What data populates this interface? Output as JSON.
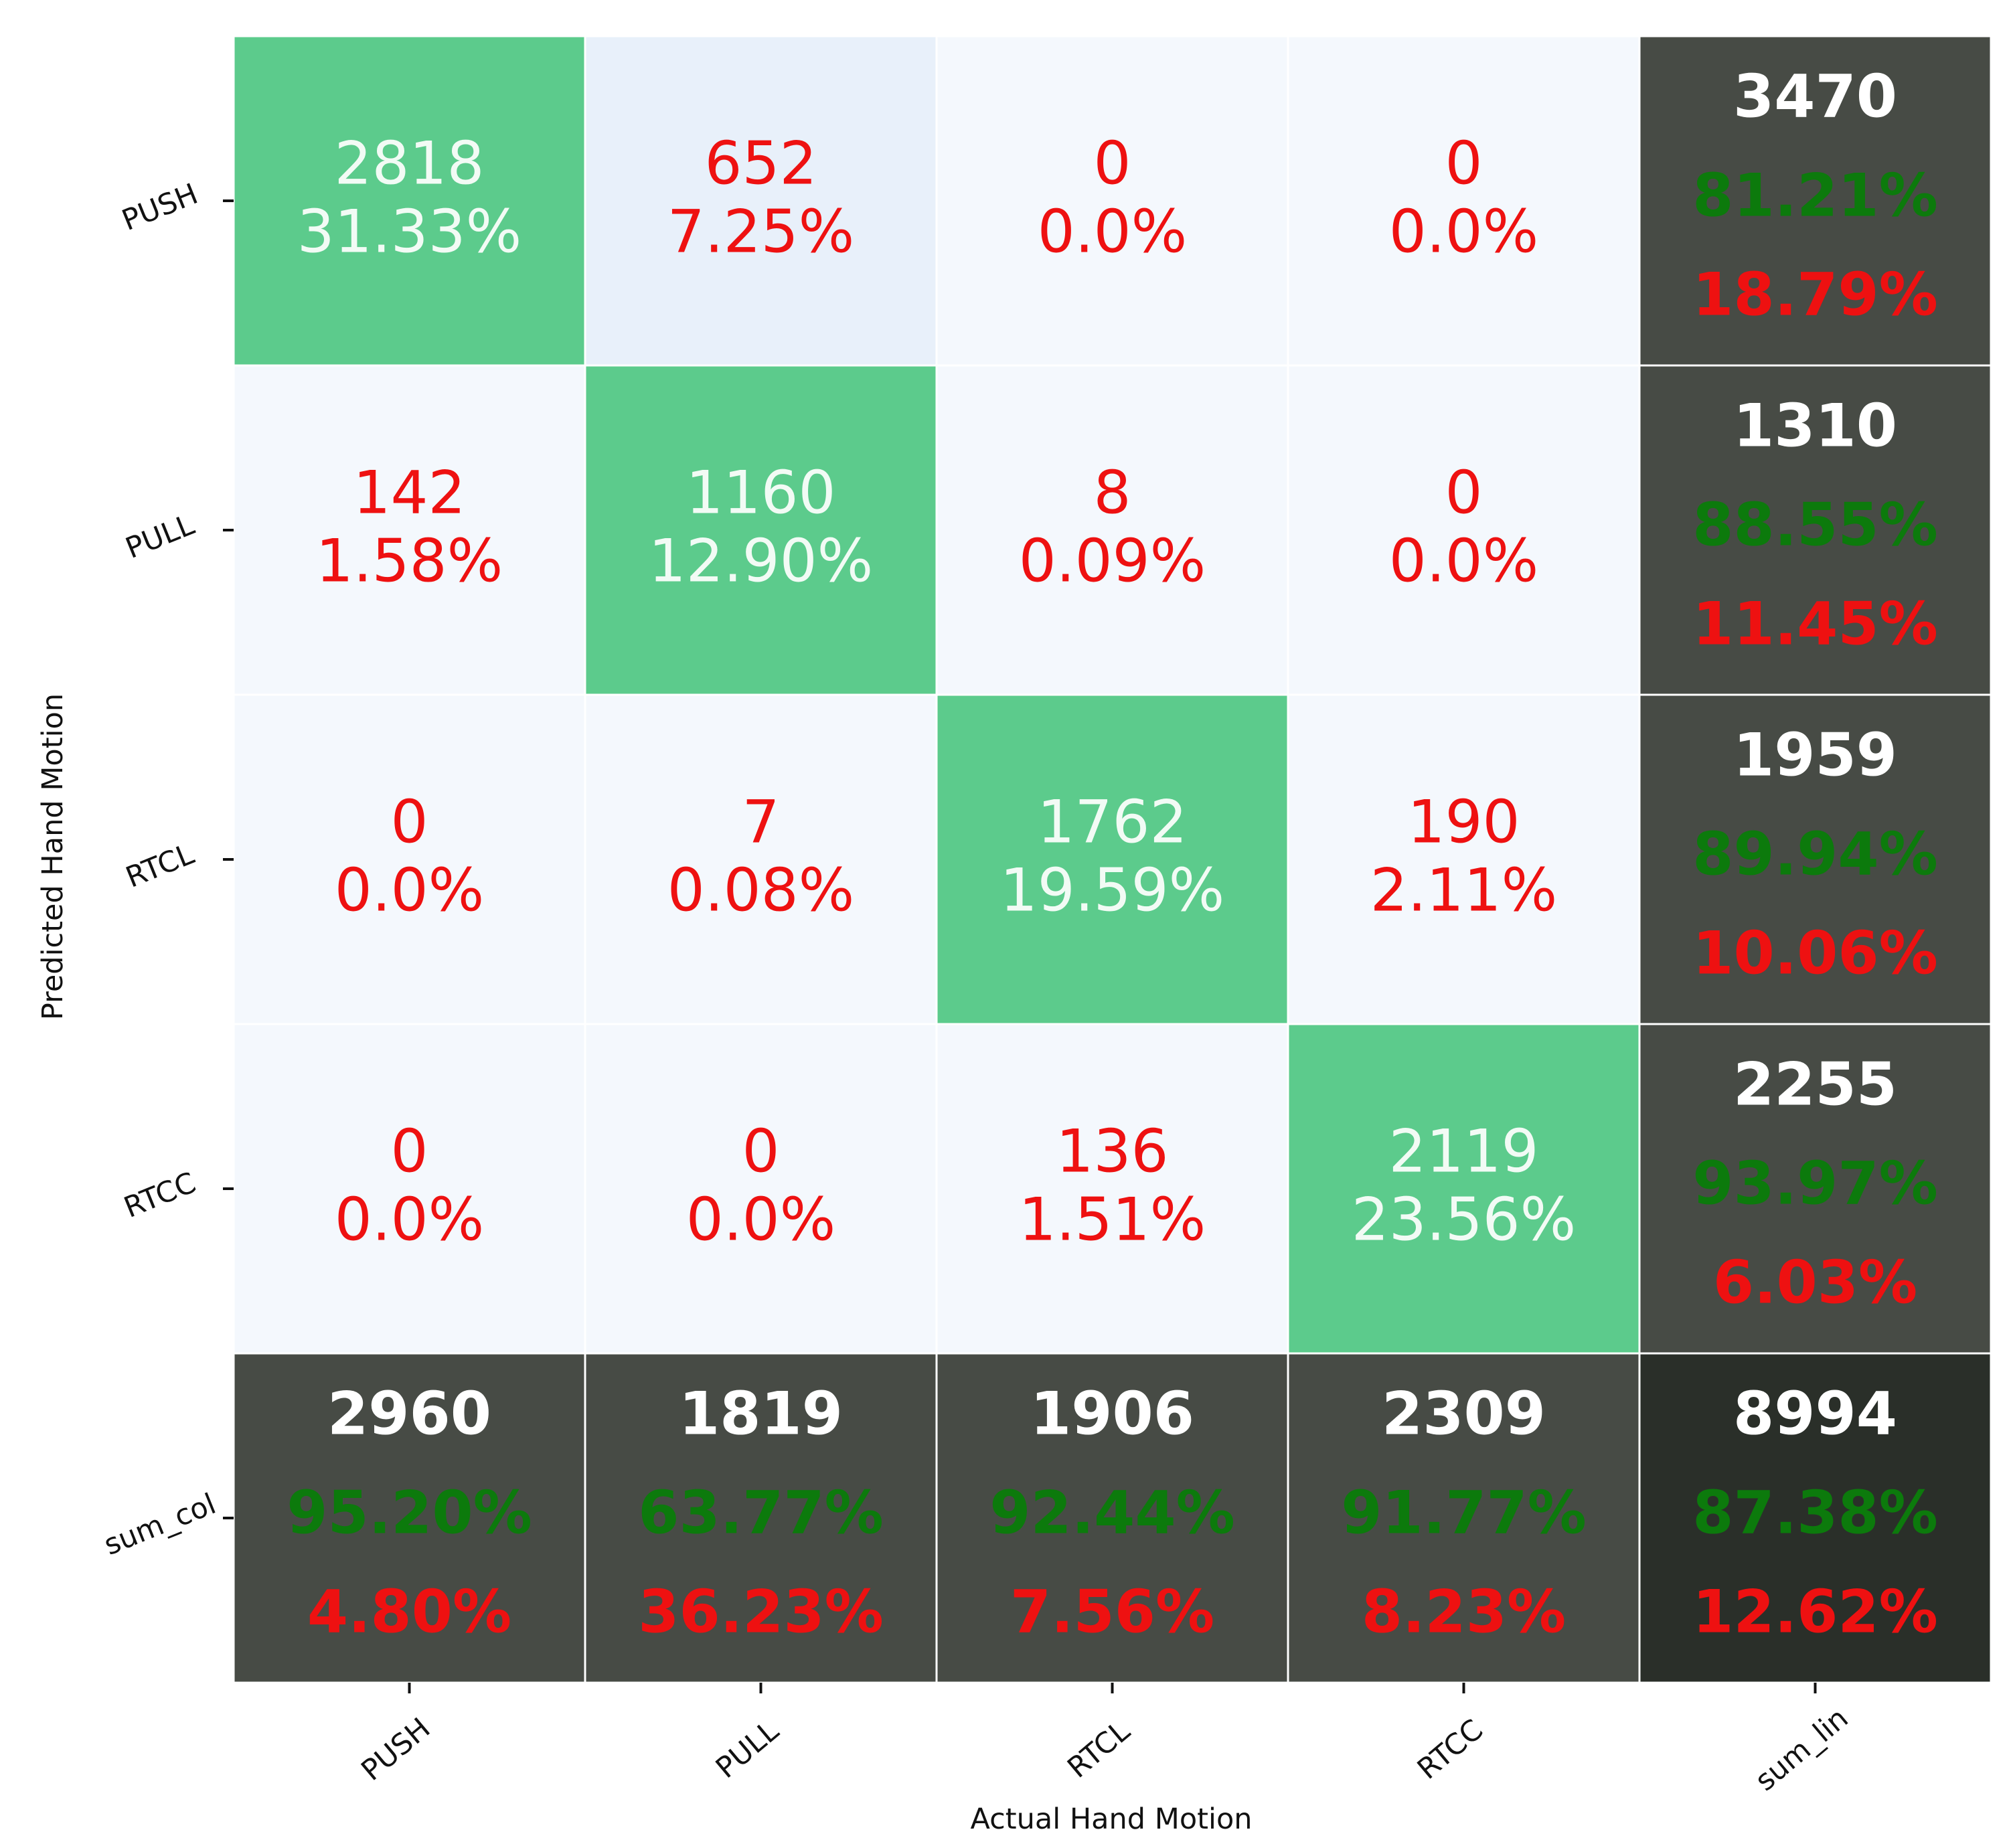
{
  "chart_data": {
    "type": "heatmap",
    "title": "",
    "xlabel": "Actual Hand Motion",
    "ylabel": "Predicted Hand Motion",
    "x_categories": [
      "PUSH",
      "PULL",
      "RTCL",
      "RTCC",
      "sum_lin"
    ],
    "y_categories": [
      "PUSH",
      "PULL",
      "RTCL",
      "RTCC",
      "sum_col"
    ],
    "matrix": [
      [
        {
          "count": "2818",
          "pct": "31.33%"
        },
        {
          "count": "652",
          "pct": "7.25%"
        },
        {
          "count": "0",
          "pct": "0.0%"
        },
        {
          "count": "0",
          "pct": "0.0%"
        }
      ],
      [
        {
          "count": "142",
          "pct": "1.58%"
        },
        {
          "count": "1160",
          "pct": "12.90%"
        },
        {
          "count": "8",
          "pct": "0.09%"
        },
        {
          "count": "0",
          "pct": "0.0%"
        }
      ],
      [
        {
          "count": "0",
          "pct": "0.0%"
        },
        {
          "count": "7",
          "pct": "0.08%"
        },
        {
          "count": "1762",
          "pct": "19.59%"
        },
        {
          "count": "190",
          "pct": "2.11%"
        }
      ],
      [
        {
          "count": "0",
          "pct": "0.0%"
        },
        {
          "count": "0",
          "pct": "0.0%"
        },
        {
          "count": "136",
          "pct": "1.51%"
        },
        {
          "count": "2119",
          "pct": "23.56%"
        }
      ]
    ],
    "row_summary": [
      {
        "total": "3470",
        "correct": "81.21%",
        "error": "18.79%"
      },
      {
        "total": "1310",
        "correct": "88.55%",
        "error": "11.45%"
      },
      {
        "total": "1959",
        "correct": "89.94%",
        "error": "10.06%"
      },
      {
        "total": "2255",
        "correct": "93.97%",
        "error": "6.03%"
      }
    ],
    "col_summary": [
      {
        "total": "2960",
        "correct": "95.20%",
        "error": "4.80%"
      },
      {
        "total": "1819",
        "correct": "63.77%",
        "error": "36.23%"
      },
      {
        "total": "1906",
        "correct": "92.44%",
        "error": "7.56%"
      },
      {
        "total": "2309",
        "correct": "91.77%",
        "error": "8.23%"
      }
    ],
    "overall": {
      "total": "8994",
      "correct": "87.38%",
      "error": "12.62%"
    },
    "colors": {
      "diagonal": "#5ccb8c",
      "offdiag_light": "#f4f8fd",
      "offdiag_tint": "#e8f0fa",
      "summary": "#474b45",
      "overall": "#2a2f29",
      "diag_text": "#f2fbf5",
      "offdiag_text": "#ee1111",
      "total_text": "#ffffff",
      "correct_text": "#0c7a0c",
      "error_text": "#ee1111",
      "grid": "#ffffff"
    }
  }
}
